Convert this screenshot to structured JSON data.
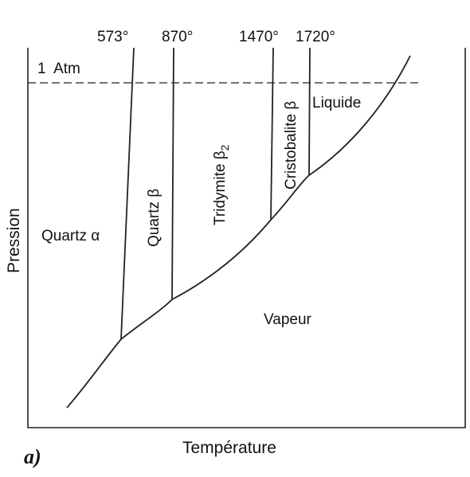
{
  "temperatures": {
    "t573": "573°",
    "t870": "870°",
    "t1470": "1470°",
    "t1720": "1720°"
  },
  "pressure_line": "1  Atm",
  "phases": {
    "quartz_alpha": "Quartz α",
    "quartz_beta": "Quartz β",
    "tridymite": "Tridymite β",
    "tridymite_sub": "2",
    "cristobalite": "Cristobalite β",
    "liquide": "Liquide",
    "vapeur": "Vapeur"
  },
  "axes": {
    "x_label": "Température",
    "y_label": "Pression"
  },
  "panel_label": "a)"
}
